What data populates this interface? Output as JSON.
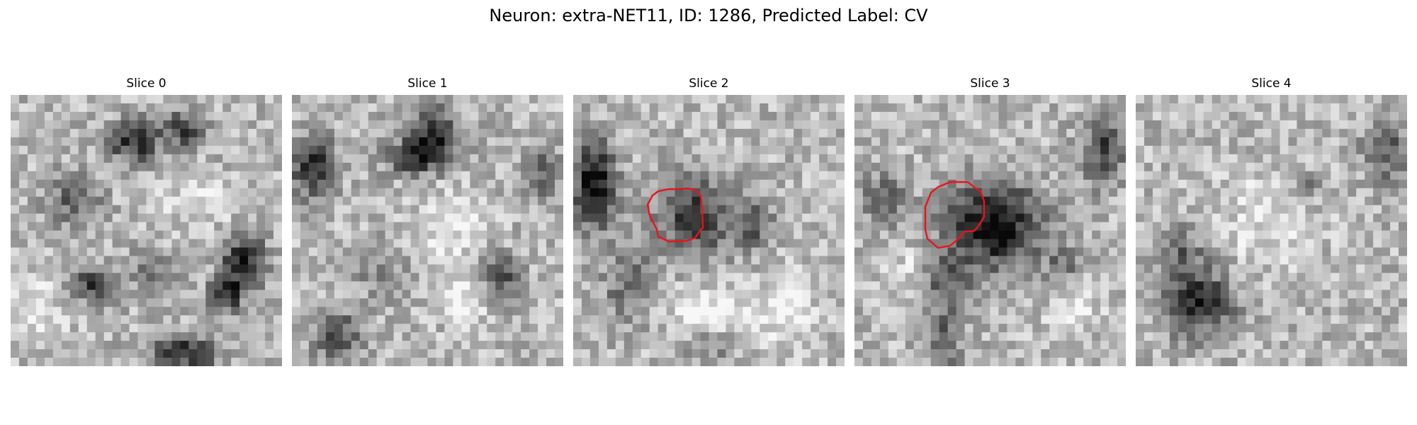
{
  "title": "Neuron: extra-NET11, ID: 1286, Predicted Label: CV",
  "slices": [
    {
      "label": "Slice 0"
    },
    {
      "label": "Slice 1"
    },
    {
      "label": "Slice 2"
    },
    {
      "label": "Slice 3"
    },
    {
      "label": "Slice 4"
    }
  ],
  "colors": {
    "background": "#ffffff",
    "contour": "#e8141c",
    "colormap": "grayscale"
  }
}
